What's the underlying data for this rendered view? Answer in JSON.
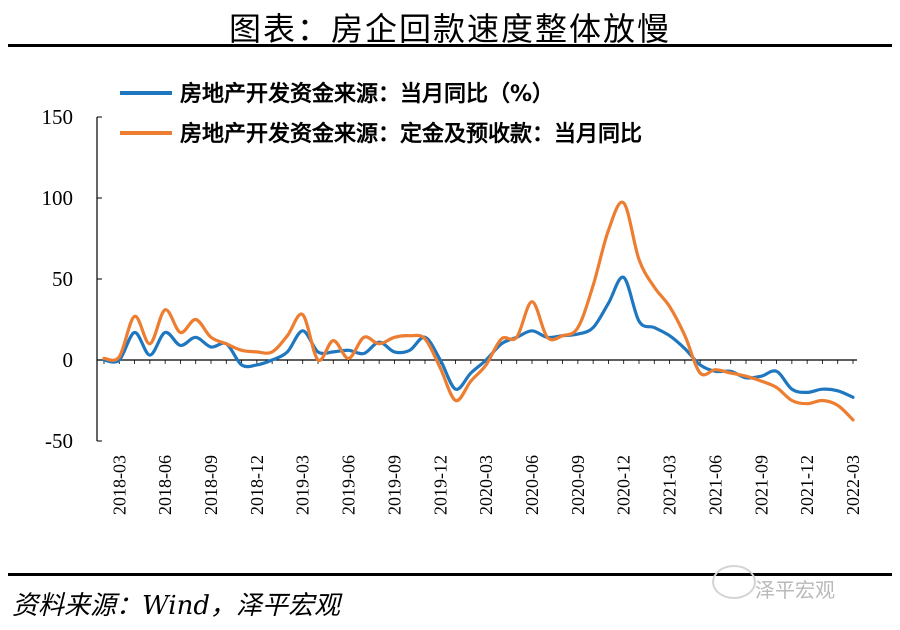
{
  "header": {
    "title": "图表：房企回款速度整体放慢"
  },
  "footer": {
    "source": "资料来源：Wind，泽平宏观",
    "watermark": "泽平宏观"
  },
  "chart_data": {
    "type": "line",
    "title": "图表：房企回款速度整体放慢",
    "xlabel": "",
    "ylabel": "",
    "ylim": [
      -50,
      150
    ],
    "yticks": [
      -50,
      0,
      50,
      100,
      150
    ],
    "xtick_labels": [
      "2018-03",
      "2018-06",
      "2018-09",
      "2018-12",
      "2019-03",
      "2019-06",
      "2019-09",
      "2019-12",
      "2020-03",
      "2020-06",
      "2020-09",
      "2020-12",
      "2021-03",
      "2021-06",
      "2021-09",
      "2021-12",
      "2022-03"
    ],
    "legend_position": "top-left",
    "grid": false,
    "x": [
      "2018-02",
      "2018-03",
      "2018-04",
      "2018-05",
      "2018-06",
      "2018-07",
      "2018-08",
      "2018-09",
      "2018-10",
      "2018-11",
      "2018-12",
      "2019-01",
      "2019-02",
      "2019-03",
      "2019-04",
      "2019-05",
      "2019-06",
      "2019-07",
      "2019-08",
      "2019-09",
      "2019-10",
      "2019-11",
      "2019-12",
      "2020-01",
      "2020-02",
      "2020-03",
      "2020-04",
      "2020-05",
      "2020-06",
      "2020-07",
      "2020-08",
      "2020-09",
      "2020-10",
      "2020-11",
      "2020-12",
      "2021-01",
      "2021-02",
      "2021-03",
      "2021-04",
      "2021-05",
      "2021-06",
      "2021-07",
      "2021-08",
      "2021-09",
      "2021-10",
      "2021-11",
      "2021-12",
      "2022-01",
      "2022-02",
      "2022-03"
    ],
    "series": [
      {
        "name": "房地产开发资金来源：当月同比（%）",
        "color": "#1f77bf",
        "values": [
          0,
          0,
          17,
          3,
          17,
          9,
          14,
          8,
          10,
          -3,
          -3,
          0,
          5,
          18,
          5,
          5,
          6,
          4,
          11,
          5,
          6,
          14,
          0,
          -18,
          -8,
          0,
          10,
          14,
          18,
          14,
          15,
          16,
          20,
          35,
          51,
          24,
          20,
          15,
          7,
          -3,
          -7,
          -7,
          -11,
          -10,
          -7,
          -18,
          -20,
          -18,
          -19,
          -23
        ]
      },
      {
        "name": "房地产开发资金来源：定金及预收款：当月同比",
        "color": "#ed7d31",
        "values": [
          1,
          2,
          27,
          10,
          31,
          17,
          25,
          14,
          10,
          6,
          5,
          5,
          15,
          28,
          0,
          12,
          1,
          14,
          10,
          14,
          15,
          13,
          -5,
          -25,
          -13,
          -3,
          13,
          14,
          36,
          14,
          15,
          20,
          46,
          80,
          97,
          62,
          45,
          33,
          15,
          -8,
          -6,
          -8,
          -10,
          -13,
          -17,
          -25,
          -27,
          -25,
          -28,
          -37
        ]
      }
    ]
  }
}
